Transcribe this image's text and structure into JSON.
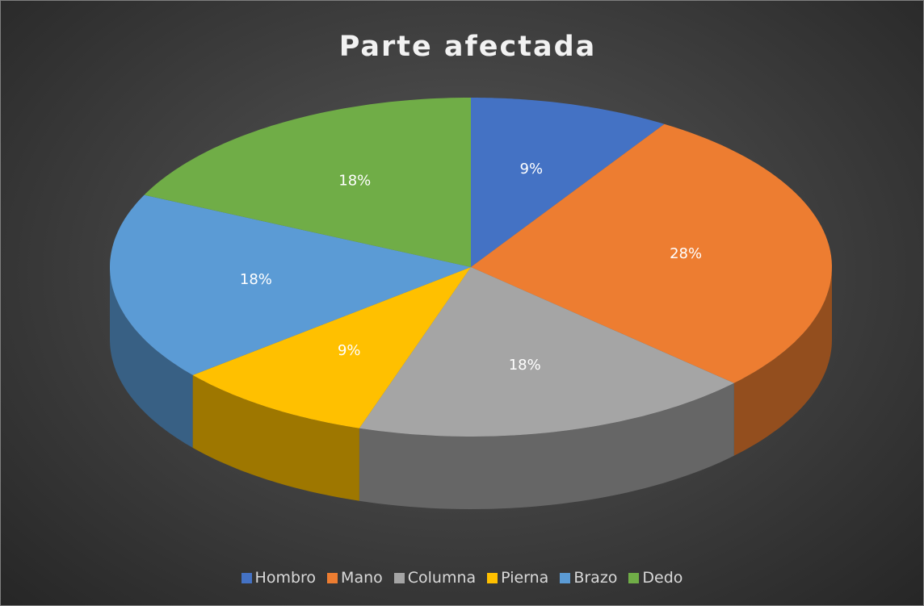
{
  "chart_data": {
    "type": "pie",
    "title": "Parte afectada",
    "categories": [
      "Hombro",
      "Mano",
      "Columna",
      "Pierna",
      "Brazo",
      "Dedo"
    ],
    "values": [
      9,
      28,
      18,
      9,
      18,
      18
    ],
    "value_labels": [
      "9%",
      "28%",
      "18%",
      "9%",
      "18%",
      "18%"
    ],
    "colors": [
      "#4472c4",
      "#ed7d31",
      "#a5a5a5",
      "#ffc000",
      "#5b9bd5",
      "#70ad47"
    ],
    "legend": "bottom"
  }
}
